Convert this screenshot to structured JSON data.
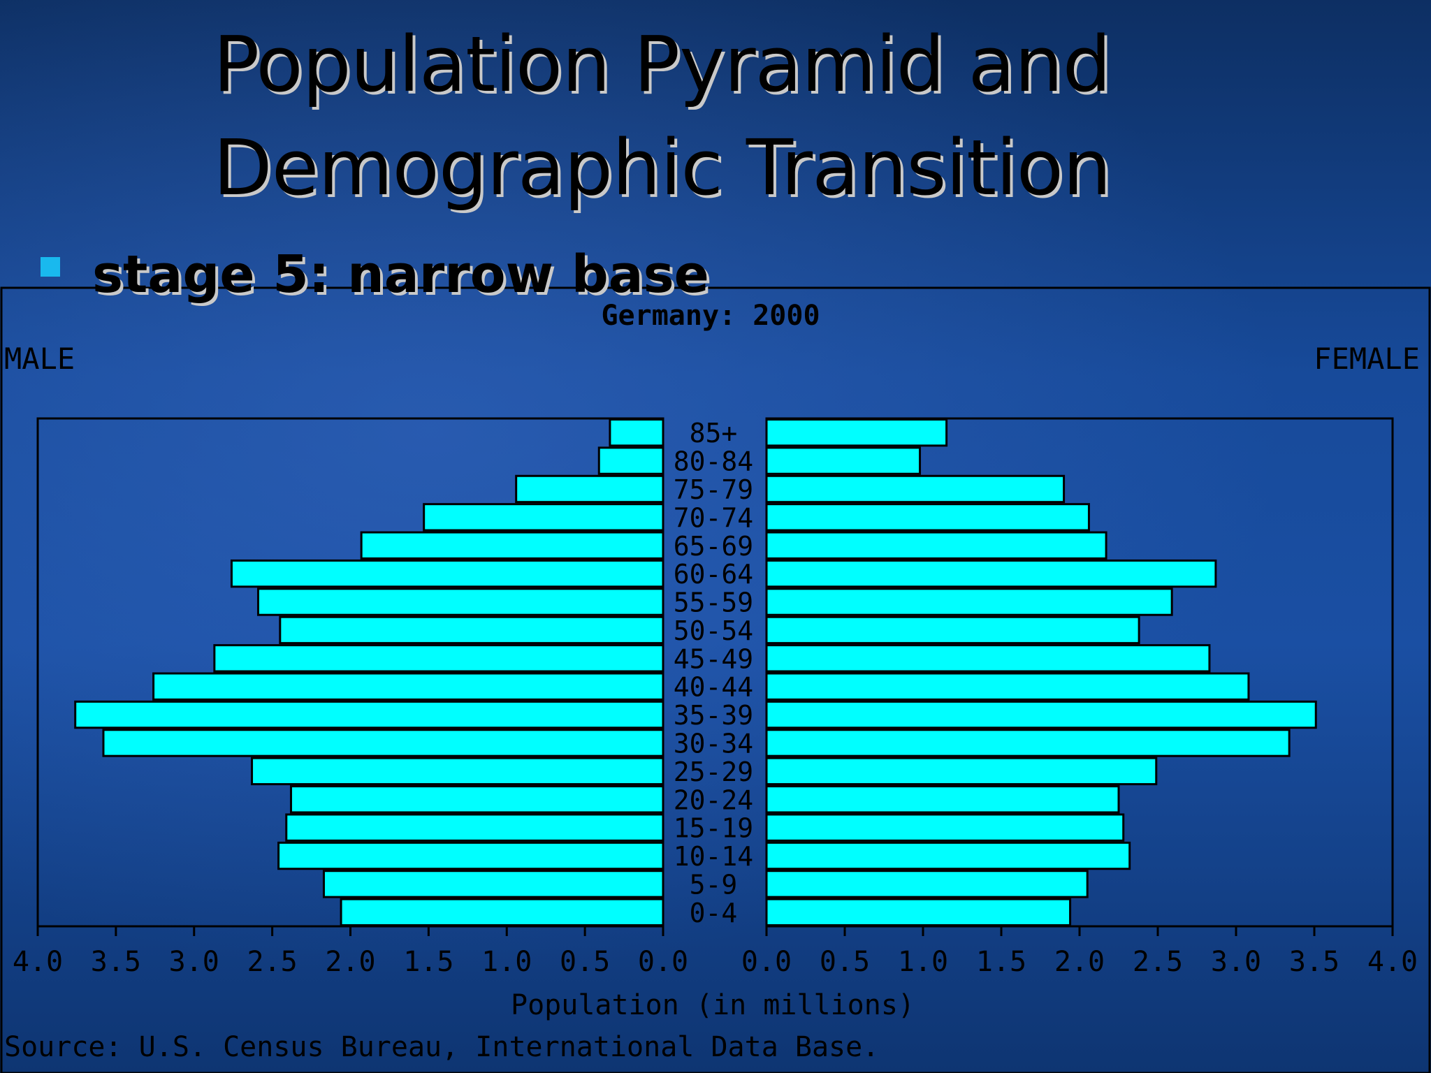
{
  "slide": {
    "title_line1": "Population Pyramid and",
    "title_line2": "Demographic Transition",
    "bullet": "stage 5: narrow base"
  },
  "colors": {
    "bar_fill": "#00ffff",
    "bullet": "#19b9ee",
    "outline": "#000000"
  },
  "chart_data": {
    "type": "bar",
    "orientation": "horizontal-pyramid",
    "title": "Germany: 2000",
    "left_label": "MALE",
    "right_label": "FEMALE",
    "xlabel": "Population (in millions)",
    "source": "Source: U.S. Census Bureau, International Data Base.",
    "xlim": [
      0,
      4.0
    ],
    "ticks": [
      "4.0",
      "3.5",
      "3.0",
      "2.5",
      "2.0",
      "1.5",
      "1.0",
      "0.5",
      "0.0"
    ],
    "ticks_right": [
      "0.0",
      "0.5",
      "1.0",
      "1.5",
      "2.0",
      "2.5",
      "3.0",
      "3.5",
      "4.0"
    ],
    "categories": [
      "85+",
      "80-84",
      "75-79",
      "70-74",
      "65-69",
      "60-64",
      "55-59",
      "50-54",
      "45-49",
      "40-44",
      "35-39",
      "30-34",
      "25-29",
      "20-24",
      "15-19",
      "10-14",
      "5-9",
      "0-4"
    ],
    "series": [
      {
        "name": "MALE",
        "values": [
          0.34,
          0.41,
          0.94,
          1.53,
          1.93,
          2.76,
          2.59,
          2.45,
          2.87,
          3.26,
          3.76,
          3.58,
          2.63,
          2.38,
          2.41,
          2.46,
          2.17,
          2.06
        ]
      },
      {
        "name": "FEMALE",
        "values": [
          1.15,
          0.98,
          1.9,
          2.06,
          2.17,
          2.87,
          2.59,
          2.38,
          2.83,
          3.08,
          3.51,
          3.34,
          2.49,
          2.25,
          2.28,
          2.32,
          2.05,
          1.94
        ]
      }
    ]
  }
}
